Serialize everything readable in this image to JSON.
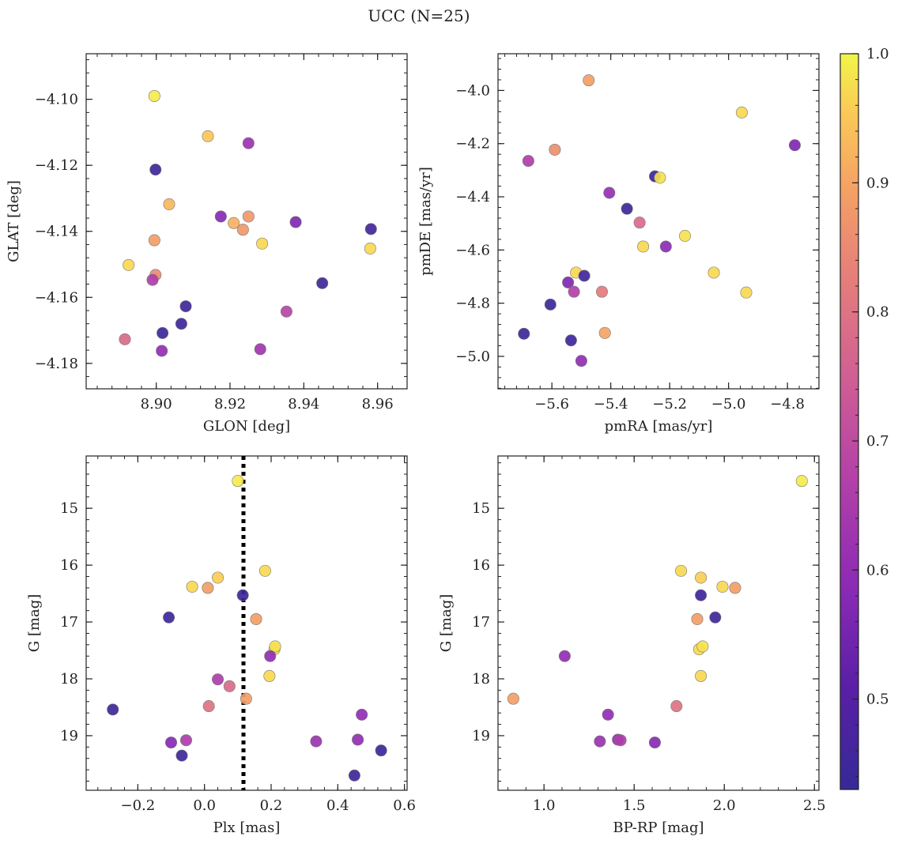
{
  "title": "UCC (N=25)",
  "colorbar": {
    "min": 0.43,
    "max": 1.0,
    "ticks": [
      0.5,
      0.6,
      0.7,
      0.8,
      0.9,
      1.0
    ],
    "tick_labels": [
      "0.5",
      "0.6",
      "0.7",
      "0.8",
      "0.9",
      "1.0"
    ],
    "colormap": "plasma"
  },
  "chart_data": [
    {
      "type": "scatter",
      "xlabel": "GLON [deg]",
      "ylabel": "GLAT [deg]",
      "xlim": [
        8.881,
        8.968
      ],
      "ylim": [
        -4.1877,
        -4.0862
      ],
      "xticks": [
        8.9,
        8.92,
        8.94,
        8.96
      ],
      "xtick_labels": [
        "8.90",
        "8.92",
        "8.94",
        "8.96"
      ],
      "yticks": [
        -4.1,
        -4.12,
        -4.14,
        -4.16,
        -4.18
      ],
      "ytick_labels": [
        "−4.10",
        "−4.12",
        "−4.14",
        "−4.16",
        "−4.18"
      ],
      "points": [
        {
          "x": 8.8995,
          "y": -4.099,
          "c": 0.99
        },
        {
          "x": 8.914,
          "y": -4.1112,
          "c": 0.95
        },
        {
          "x": 8.925,
          "y": -4.1133,
          "c": 0.62
        },
        {
          "x": 8.8998,
          "y": -4.1213,
          "c": 0.45
        },
        {
          "x": 8.9035,
          "y": -4.1318,
          "c": 0.93
        },
        {
          "x": 8.9175,
          "y": -4.1355,
          "c": 0.58
        },
        {
          "x": 8.925,
          "y": -4.1355,
          "c": 0.88
        },
        {
          "x": 8.921,
          "y": -4.1375,
          "c": 0.92
        },
        {
          "x": 8.9378,
          "y": -4.1372,
          "c": 0.57
        },
        {
          "x": 8.9235,
          "y": -4.1395,
          "c": 0.88
        },
        {
          "x": 8.9582,
          "y": -4.1393,
          "c": 0.46
        },
        {
          "x": 8.8995,
          "y": -4.1427,
          "c": 0.89
        },
        {
          "x": 8.9287,
          "y": -4.1437,
          "c": 0.97
        },
        {
          "x": 8.958,
          "y": -4.1452,
          "c": 0.97
        },
        {
          "x": 8.8925,
          "y": -4.1502,
          "c": 0.97
        },
        {
          "x": 8.8998,
          "y": -4.1532,
          "c": 0.85
        },
        {
          "x": 8.899,
          "y": -4.1547,
          "c": 0.66
        },
        {
          "x": 8.945,
          "y": -4.1557,
          "c": 0.45
        },
        {
          "x": 8.908,
          "y": -4.1627,
          "c": 0.45
        },
        {
          "x": 8.9353,
          "y": -4.1643,
          "c": 0.68
        },
        {
          "x": 8.9068,
          "y": -4.168,
          "c": 0.45
        },
        {
          "x": 8.9017,
          "y": -4.1708,
          "c": 0.45
        },
        {
          "x": 8.8915,
          "y": -4.1727,
          "c": 0.78
        },
        {
          "x": 8.9282,
          "y": -4.1757,
          "c": 0.63
        },
        {
          "x": 8.9015,
          "y": -4.1762,
          "c": 0.6
        }
      ]
    },
    {
      "type": "scatter",
      "xlabel": "pmRA [mas/yr]",
      "ylabel": "pmDE [mas/yr]",
      "xlim": [
        -5.783,
        -4.693
      ],
      "ylim": [
        -5.122,
        -3.862
      ],
      "xticks": [
        -5.6,
        -5.4,
        -5.2,
        -5.0,
        -4.8
      ],
      "xtick_labels": [
        "−5.6",
        "−5.4",
        "−5.2",
        "−5.0",
        "−4.8"
      ],
      "yticks": [
        -4.0,
        -4.2,
        -4.4,
        -4.6,
        -4.8,
        -5.0
      ],
      "ytick_labels": [
        "−4.0",
        "−4.2",
        "−4.4",
        "−4.6",
        "−4.8",
        "−5.0"
      ],
      "points": [
        {
          "x": -5.475,
          "y": -3.962,
          "c": 0.89
        },
        {
          "x": -4.955,
          "y": -4.083,
          "c": 0.97
        },
        {
          "x": -4.775,
          "y": -4.206,
          "c": 0.57
        },
        {
          "x": -5.59,
          "y": -4.223,
          "c": 0.86
        },
        {
          "x": -5.68,
          "y": -4.265,
          "c": 0.66
        },
        {
          "x": -5.25,
          "y": -4.323,
          "c": 0.45
        },
        {
          "x": -5.233,
          "y": -4.328,
          "c": 0.98
        },
        {
          "x": -5.405,
          "y": -4.385,
          "c": 0.61
        },
        {
          "x": -5.345,
          "y": -4.445,
          "c": 0.45
        },
        {
          "x": -5.302,
          "y": -4.497,
          "c": 0.78
        },
        {
          "x": -5.148,
          "y": -4.547,
          "c": 0.98
        },
        {
          "x": -5.29,
          "y": -4.587,
          "c": 0.97
        },
        {
          "x": -5.213,
          "y": -4.587,
          "c": 0.59
        },
        {
          "x": -5.05,
          "y": -4.685,
          "c": 0.97
        },
        {
          "x": -5.518,
          "y": -4.685,
          "c": 0.97
        },
        {
          "x": -5.49,
          "y": -4.697,
          "c": 0.46
        },
        {
          "x": -5.545,
          "y": -4.722,
          "c": 0.57
        },
        {
          "x": -5.525,
          "y": -4.757,
          "c": 0.67
        },
        {
          "x": -5.43,
          "y": -4.757,
          "c": 0.82
        },
        {
          "x": -4.94,
          "y": -4.76,
          "c": 0.97
        },
        {
          "x": -5.605,
          "y": -4.805,
          "c": 0.45
        },
        {
          "x": -5.42,
          "y": -4.912,
          "c": 0.9
        },
        {
          "x": -5.695,
          "y": -4.915,
          "c": 0.45
        },
        {
          "x": -5.535,
          "y": -4.94,
          "c": 0.45
        },
        {
          "x": -5.5,
          "y": -5.017,
          "c": 0.6
        }
      ]
    },
    {
      "type": "scatter",
      "xlabel": "Plx [mas]",
      "ylabel": "G [mag]",
      "xlim": [
        -0.355,
        0.608
      ],
      "ylim": [
        19.96,
        14.08
      ],
      "y_inverted": true,
      "vline_x": 0.117,
      "xticks": [
        -0.2,
        0.0,
        0.2,
        0.4,
        0.6
      ],
      "xtick_labels": [
        "−0.2",
        "0.0",
        "0.2",
        "0.4",
        "0.6"
      ],
      "yticks": [
        15,
        16,
        17,
        18,
        19
      ],
      "ytick_labels": [
        "15",
        "16",
        "17",
        "18",
        "19"
      ],
      "points": [
        {
          "x": 0.1,
          "y": 14.52,
          "c": 0.99
        },
        {
          "x": 0.182,
          "y": 16.1,
          "c": 0.97
        },
        {
          "x": 0.04,
          "y": 16.22,
          "c": 0.96
        },
        {
          "x": -0.037,
          "y": 16.38,
          "c": 0.97
        },
        {
          "x": 0.01,
          "y": 16.4,
          "c": 0.89
        },
        {
          "x": 0.115,
          "y": 16.53,
          "c": 0.45
        },
        {
          "x": -0.107,
          "y": 16.92,
          "c": 0.45
        },
        {
          "x": 0.155,
          "y": 16.95,
          "c": 0.89
        },
        {
          "x": 0.21,
          "y": 17.48,
          "c": 0.97
        },
        {
          "x": 0.212,
          "y": 17.43,
          "c": 0.98
        },
        {
          "x": 0.197,
          "y": 17.6,
          "c": 0.6
        },
        {
          "x": 0.195,
          "y": 17.95,
          "c": 0.97
        },
        {
          "x": 0.04,
          "y": 18.01,
          "c": 0.66
        },
        {
          "x": 0.075,
          "y": 18.13,
          "c": 0.78
        },
        {
          "x": 0.125,
          "y": 18.35,
          "c": 0.89
        },
        {
          "x": 0.013,
          "y": 18.48,
          "c": 0.8
        },
        {
          "x": -0.275,
          "y": 18.54,
          "c": 0.45
        },
        {
          "x": 0.472,
          "y": 18.63,
          "c": 0.6
        },
        {
          "x": -0.1,
          "y": 19.12,
          "c": 0.58
        },
        {
          "x": -0.055,
          "y": 19.08,
          "c": 0.66
        },
        {
          "x": 0.335,
          "y": 19.1,
          "c": 0.62
        },
        {
          "x": 0.46,
          "y": 19.07,
          "c": 0.6
        },
        {
          "x": 0.53,
          "y": 19.26,
          "c": 0.45
        },
        {
          "x": -0.068,
          "y": 19.35,
          "c": 0.45
        },
        {
          "x": 0.45,
          "y": 19.7,
          "c": 0.45
        }
      ]
    },
    {
      "type": "scatter",
      "xlabel": "BP-RP [mag]",
      "ylabel": "G [mag]",
      "xlim": [
        0.745,
        2.525
      ],
      "ylim": [
        19.96,
        14.08
      ],
      "y_inverted": true,
      "xticks": [
        1.0,
        1.5,
        2.0,
        2.5
      ],
      "xtick_labels": [
        "1.0",
        "1.5",
        "2.0",
        "2.5"
      ],
      "yticks": [
        15,
        16,
        17,
        18,
        19
      ],
      "ytick_labels": [
        "15",
        "16",
        "17",
        "18",
        "19"
      ],
      "points": [
        {
          "x": 2.43,
          "y": 14.52,
          "c": 0.99
        },
        {
          "x": 1.76,
          "y": 16.1,
          "c": 0.97
        },
        {
          "x": 1.87,
          "y": 16.22,
          "c": 0.96
        },
        {
          "x": 1.99,
          "y": 16.38,
          "c": 0.97
        },
        {
          "x": 2.06,
          "y": 16.4,
          "c": 0.89
        },
        {
          "x": 1.87,
          "y": 16.53,
          "c": 0.45
        },
        {
          "x": 1.95,
          "y": 16.92,
          "c": 0.45
        },
        {
          "x": 1.85,
          "y": 16.95,
          "c": 0.89
        },
        {
          "x": 1.86,
          "y": 17.48,
          "c": 0.97
        },
        {
          "x": 1.88,
          "y": 17.43,
          "c": 0.98
        },
        {
          "x": 1.115,
          "y": 17.6,
          "c": 0.6
        },
        {
          "x": 1.87,
          "y": 17.95,
          "c": 0.97
        },
        {
          "x": 0.83,
          "y": 18.35,
          "c": 0.89
        },
        {
          "x": 1.735,
          "y": 18.48,
          "c": 0.8
        },
        {
          "x": 1.355,
          "y": 18.63,
          "c": 0.6
        },
        {
          "x": 1.31,
          "y": 19.1,
          "c": 0.62
        },
        {
          "x": 1.41,
          "y": 19.07,
          "c": 0.6
        },
        {
          "x": 1.425,
          "y": 19.08,
          "c": 0.66
        },
        {
          "x": 1.615,
          "y": 19.12,
          "c": 0.58
        }
      ]
    }
  ]
}
